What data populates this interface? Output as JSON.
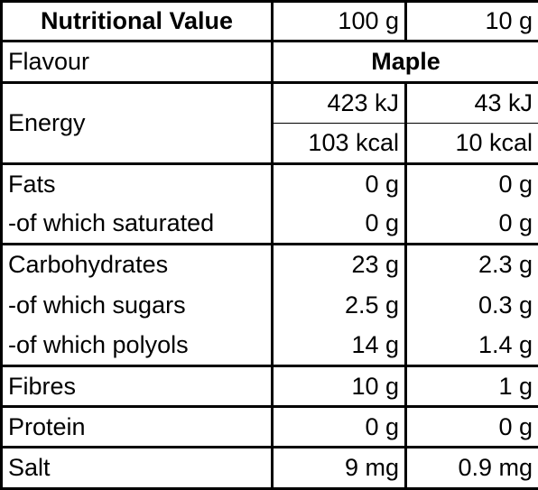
{
  "header": {
    "label": "Nutritional Value",
    "col_100g": "100 g",
    "col_10g": "10 g"
  },
  "flavour": {
    "label": "Flavour",
    "value": "Maple"
  },
  "energy": {
    "label": "Energy",
    "kj_100g": "423 kJ",
    "kj_10g": "43 kJ",
    "kcal_100g": "103 kcal",
    "kcal_10g": "10 kcal"
  },
  "rows": [
    {
      "label": "Fats",
      "v100": "0 g",
      "v10": "0 g"
    },
    {
      "label": "-of which saturated",
      "v100": "0 g",
      "v10": "0 g"
    },
    {
      "label": "Carbohydrates",
      "v100": "23 g",
      "v10": "2.3 g"
    },
    {
      "label": "-of which sugars",
      "v100": "2.5 g",
      "v10": "0.3 g"
    },
    {
      "label": "-of which polyols",
      "v100": "14 g",
      "v10": "1.4 g"
    },
    {
      "label": "Fibres",
      "v100": "10 g",
      "v10": "1 g"
    },
    {
      "label": "Protein",
      "v100": "0 g",
      "v10": "0 g"
    },
    {
      "label": "Salt",
      "v100": "9 mg",
      "v10": "0.9 mg"
    }
  ]
}
